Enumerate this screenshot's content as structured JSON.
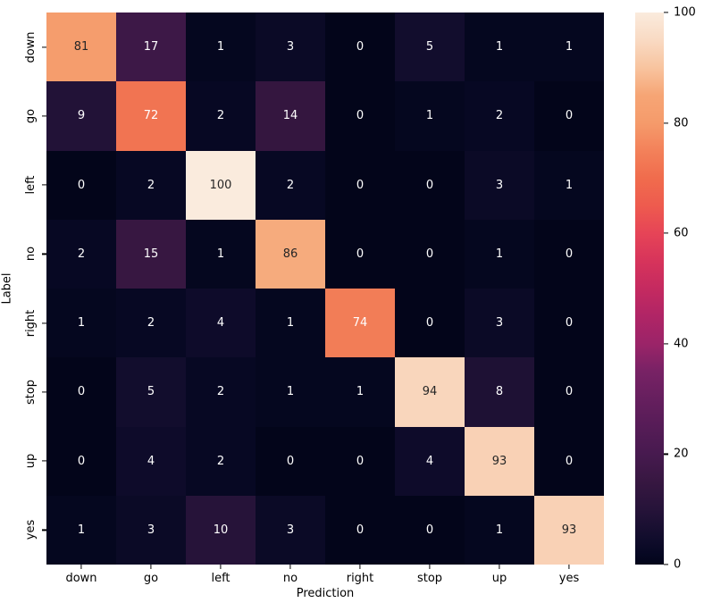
{
  "chart_data": {
    "type": "heatmap",
    "xlabel": "Prediction",
    "ylabel": "Label",
    "row_labels": [
      "down",
      "go",
      "left",
      "no",
      "right",
      "stop",
      "up",
      "yes"
    ],
    "col_labels": [
      "down",
      "go",
      "left",
      "no",
      "right",
      "stop",
      "up",
      "yes"
    ],
    "matrix": [
      [
        81,
        17,
        1,
        3,
        0,
        5,
        1,
        1
      ],
      [
        9,
        72,
        2,
        14,
        0,
        1,
        2,
        0
      ],
      [
        0,
        2,
        100,
        2,
        0,
        0,
        3,
        1
      ],
      [
        2,
        15,
        1,
        86,
        0,
        0,
        1,
        0
      ],
      [
        1,
        2,
        4,
        1,
        74,
        0,
        3,
        0
      ],
      [
        0,
        5,
        2,
        1,
        1,
        94,
        8,
        0
      ],
      [
        0,
        4,
        2,
        0,
        0,
        4,
        93,
        0
      ],
      [
        1,
        3,
        10,
        3,
        0,
        0,
        1,
        93
      ]
    ],
    "vmin": 0,
    "vmax": 100,
    "colorbar_ticks": [
      0,
      20,
      40,
      60,
      80,
      100
    ],
    "colormap": {
      "name": "rocket",
      "stops": [
        {
          "t": 0.0,
          "color": "#03051A"
        },
        {
          "t": 0.02,
          "color": "#070823"
        },
        {
          "t": 0.05,
          "color": "#120D2D"
        },
        {
          "t": 0.1,
          "color": "#261339"
        },
        {
          "t": 0.15,
          "color": "#371741"
        },
        {
          "t": 0.2,
          "color": "#471A4F"
        },
        {
          "t": 0.25,
          "color": "#561C57"
        },
        {
          "t": 0.3,
          "color": "#661F5E"
        },
        {
          "t": 0.35,
          "color": "#782265"
        },
        {
          "t": 0.4,
          "color": "#9B2468"
        },
        {
          "t": 0.45,
          "color": "#B02566"
        },
        {
          "t": 0.5,
          "color": "#C52A60"
        },
        {
          "t": 0.55,
          "color": "#D7345B"
        },
        {
          "t": 0.6,
          "color": "#E64457"
        },
        {
          "t": 0.65,
          "color": "#EE5B4E"
        },
        {
          "t": 0.7,
          "color": "#F06C4D"
        },
        {
          "t": 0.75,
          "color": "#F3815A"
        },
        {
          "t": 0.8,
          "color": "#F59B6B"
        },
        {
          "t": 0.85,
          "color": "#F6A575"
        },
        {
          "t": 0.9,
          "color": "#F8C49F"
        },
        {
          "t": 0.95,
          "color": "#F9DAC3"
        },
        {
          "t": 1.0,
          "color": "#FAEBDD"
        }
      ]
    },
    "annotation_colors": {
      "light": "#FFFFFF",
      "dark": "#262626"
    },
    "background": "#FFFFFF",
    "grid": false,
    "legend": "colorbar-right"
  }
}
